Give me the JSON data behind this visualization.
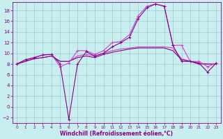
{
  "xlabel": "Windchill (Refroidissement éolien,°C)",
  "background_color": "#c8eef0",
  "grid_color": "#a0c8cc",
  "line_color_dark": "#880088",
  "line_color_light": "#cc44cc",
  "xlim": [
    -0.5,
    23.5
  ],
  "ylim": [
    -3.0,
    19.5
  ],
  "xticks": [
    0,
    1,
    2,
    3,
    4,
    5,
    6,
    7,
    8,
    9,
    10,
    11,
    12,
    13,
    14,
    15,
    16,
    17,
    18,
    19,
    20,
    21,
    22,
    23
  ],
  "yticks": [
    -2,
    0,
    2,
    4,
    6,
    8,
    10,
    12,
    14,
    16,
    18
  ],
  "curve1_x": [
    0,
    1,
    2,
    3,
    4,
    5,
    6,
    7,
    8,
    9,
    10,
    11,
    12,
    13,
    14,
    15,
    16,
    17,
    18,
    19,
    20,
    21,
    22,
    23
  ],
  "curve1_y": [
    8.0,
    8.8,
    9.2,
    9.7,
    9.8,
    7.5,
    8.2,
    10.5,
    10.5,
    9.8,
    10.5,
    12.0,
    12.2,
    13.5,
    17.0,
    18.8,
    19.2,
    18.8,
    11.5,
    11.5,
    8.5,
    8.5,
    7.5,
    8.2
  ],
  "curve2_x": [
    0,
    1,
    2,
    3,
    4,
    5,
    6,
    7,
    8,
    9,
    10,
    11,
    12,
    13,
    14,
    15,
    16,
    17,
    18,
    19,
    20,
    21,
    22,
    23
  ],
  "curve2_y": [
    8.0,
    8.8,
    9.2,
    9.7,
    9.8,
    8.0,
    -2.3,
    8.0,
    10.3,
    9.5,
    10.0,
    11.2,
    12.0,
    13.0,
    16.5,
    18.5,
    19.2,
    18.8,
    11.5,
    8.5,
    8.5,
    8.2,
    6.5,
    8.2
  ],
  "curve3_x": [
    0,
    1,
    2,
    3,
    4,
    5,
    6,
    7,
    8,
    9,
    10,
    11,
    12,
    13,
    14,
    15,
    16,
    17,
    18,
    19,
    20,
    21,
    22,
    23
  ],
  "curve3_y": [
    8.0,
    8.5,
    9.0,
    9.2,
    9.5,
    8.5,
    8.5,
    9.2,
    9.5,
    9.2,
    9.8,
    10.2,
    10.5,
    10.8,
    11.0,
    11.0,
    11.0,
    11.0,
    10.5,
    8.8,
    8.5,
    8.0,
    8.0,
    8.0
  ],
  "curve4_x": [
    0,
    1,
    2,
    3,
    4,
    5,
    6,
    7,
    8,
    9,
    10,
    11,
    12,
    13,
    14,
    15,
    16,
    17,
    18,
    19,
    20,
    21,
    22,
    23
  ],
  "curve4_y": [
    8.0,
    8.5,
    9.0,
    9.2,
    9.5,
    8.5,
    8.5,
    9.5,
    9.8,
    9.5,
    10.0,
    10.5,
    10.8,
    11.0,
    11.2,
    11.2,
    11.2,
    11.2,
    11.0,
    9.0,
    8.5,
    8.2,
    8.0,
    8.0
  ]
}
